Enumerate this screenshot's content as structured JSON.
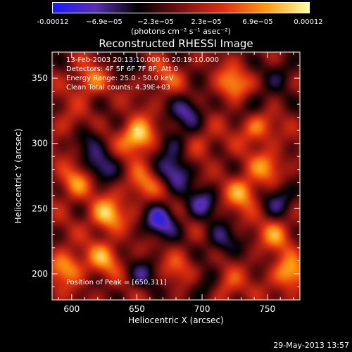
{
  "colorbar": {
    "ticks": [
      "-0.00012",
      "−6.9e−05",
      "−2.3e−05",
      "2.3e−05",
      "6.9e−05",
      "0.00012"
    ],
    "unit_label": "(photons cm⁻² s⁻¹ asec⁻²)",
    "range": [
      -0.00012,
      0.00012
    ],
    "colors": [
      "#1a1aff",
      "#5a2eb0",
      "#000000",
      "#7a1010",
      "#e03010",
      "#ff9a10",
      "#ffffa0"
    ]
  },
  "chart_data": {
    "type": "heatmap",
    "title": "Reconstructed RHESSI Image",
    "xlabel": "Heliocentric X (arcsec)",
    "ylabel": "Heliocentric Y (arcsec)",
    "xlim": [
      585,
      775
    ],
    "ylim": [
      180,
      370
    ],
    "xticks": [
      600,
      650,
      700,
      750
    ],
    "yticks": [
      200,
      250,
      300,
      350
    ],
    "annotations": {
      "time_range": "13-Feb-2003 20:13:10.000 to 20:19:10.000",
      "detectors": "Detectors: 4F 5F 6F 7F 8F, Att 0",
      "energy_range": "Energy Range: 25.0 - 50.0 keV",
      "clean_counts": "Clean      Total counts: 4.39E+03",
      "peak": "Position of Peak = [650,311]"
    },
    "peak": [
      650,
      311
    ],
    "sources": [
      {
        "x": 651,
        "y": 305,
        "v": 1.0
      },
      {
        "x": 614,
        "y": 348,
        "v": 0.55
      },
      {
        "x": 600,
        "y": 312,
        "v": 0.35
      },
      {
        "x": 603,
        "y": 270,
        "v": 0.6
      },
      {
        "x": 627,
        "y": 245,
        "v": 0.8
      },
      {
        "x": 596,
        "y": 205,
        "v": 0.7
      },
      {
        "x": 625,
        "y": 212,
        "v": 0.6
      },
      {
        "x": 654,
        "y": 268,
        "v": 0.5
      },
      {
        "x": 682,
        "y": 205,
        "v": 0.35
      },
      {
        "x": 699,
        "y": 300,
        "v": 0.3
      },
      {
        "x": 724,
        "y": 345,
        "v": 0.65
      },
      {
        "x": 742,
        "y": 312,
        "v": 0.6
      },
      {
        "x": 731,
        "y": 262,
        "v": 0.7
      },
      {
        "x": 750,
        "y": 282,
        "v": 0.55
      },
      {
        "x": 767,
        "y": 200,
        "v": 0.75
      },
      {
        "x": 757,
        "y": 230,
        "v": 0.55
      },
      {
        "x": 718,
        "y": 190,
        "v": 0.5
      },
      {
        "x": 672,
        "y": 350,
        "v": 0.35
      },
      {
        "x": 611,
        "y": 305,
        "v": -0.45
      },
      {
        "x": 622,
        "y": 282,
        "v": -0.55
      },
      {
        "x": 668,
        "y": 240,
        "v": -0.75
      },
      {
        "x": 680,
        "y": 278,
        "v": -0.6
      },
      {
        "x": 700,
        "y": 255,
        "v": -0.55
      },
      {
        "x": 690,
        "y": 325,
        "v": -0.6
      },
      {
        "x": 715,
        "y": 225,
        "v": -0.5
      },
      {
        "x": 703,
        "y": 188,
        "v": -0.45
      },
      {
        "x": 760,
        "y": 258,
        "v": -0.55
      },
      {
        "x": 655,
        "y": 200,
        "v": -0.4
      },
      {
        "x": 762,
        "y": 355,
        "v": -0.35
      },
      {
        "x": 638,
        "y": 363,
        "v": -0.3
      },
      {
        "x": 676,
        "y": 300,
        "v": -0.45
      },
      {
        "x": 741,
        "y": 330,
        "v": -0.35
      }
    ]
  },
  "footer": {
    "timestamp": "29-May-2013 13:57"
  }
}
